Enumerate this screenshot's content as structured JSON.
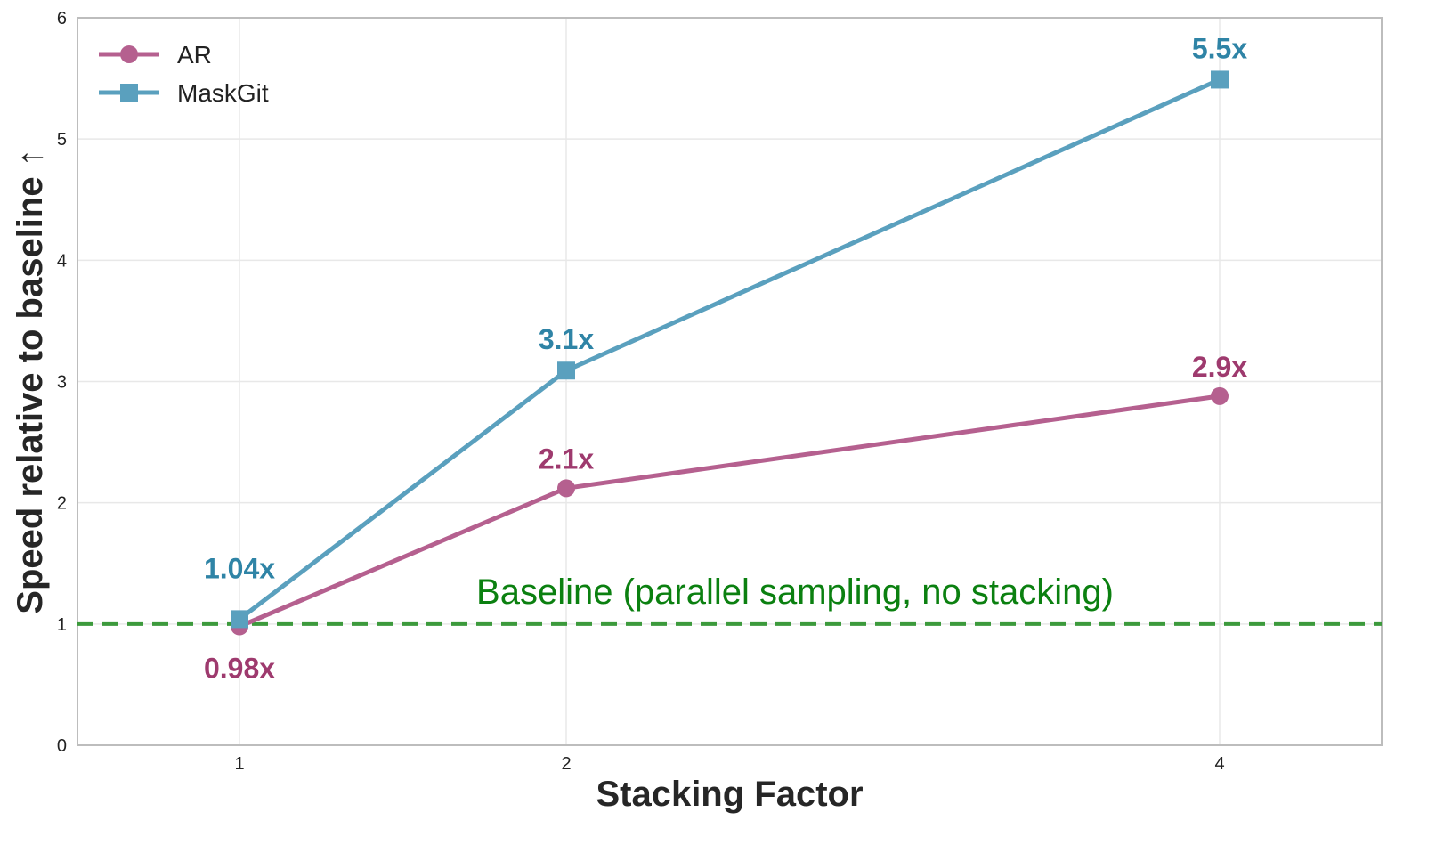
{
  "chart_data": {
    "type": "line",
    "title": "",
    "xlabel": "Stacking Factor",
    "ylabel": "Speed relative to baseline ↑",
    "x": [
      1,
      2,
      4
    ],
    "x_tick_labels": [
      "1",
      "2",
      "4"
    ],
    "xlim": [
      0.5,
      4.5
    ],
    "ylim": [
      0,
      6
    ],
    "y_ticks": [
      0,
      1,
      2,
      3,
      4,
      5,
      6
    ],
    "y_tick_labels": [
      "0",
      "1",
      "2",
      "3",
      "4",
      "5",
      "6"
    ],
    "grid": true,
    "legend_position": "top-left",
    "series": [
      {
        "name": "AR",
        "values": [
          0.98,
          2.12,
          2.88
        ],
        "labels": [
          "0.98x",
          "2.1x",
          "2.9x"
        ],
        "color": "#b5608f",
        "label_color": "#9e3a6e",
        "marker": "circle"
      },
      {
        "name": "MaskGit",
        "values": [
          1.04,
          3.09,
          5.49
        ],
        "labels": [
          "1.04x",
          "3.1x",
          "5.5x"
        ],
        "color": "#5aa0be",
        "label_color": "#2f84a6",
        "marker": "square"
      }
    ],
    "baseline": {
      "value": 1,
      "label": "Baseline (parallel sampling, no stacking)",
      "color": "#3c9a3c",
      "label_color": "#0b8010"
    }
  }
}
